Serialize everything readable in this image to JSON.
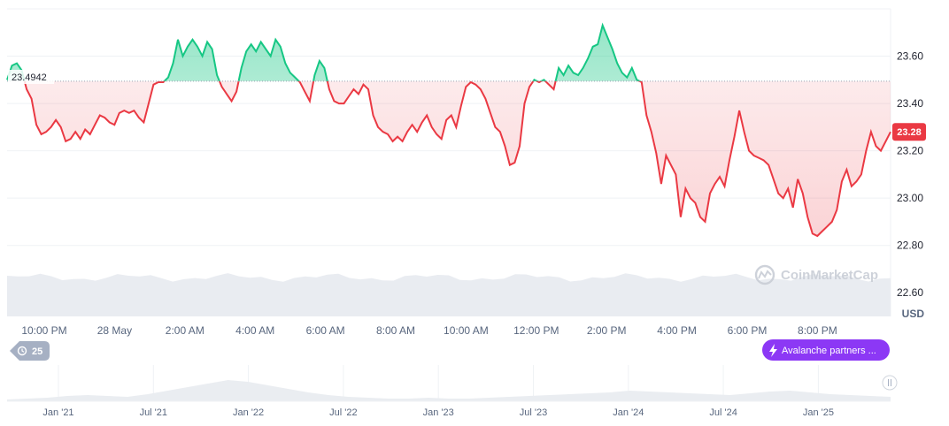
{
  "chart_data": {
    "type": "area",
    "currency": "USD",
    "ylim": [
      22.5,
      23.8
    ],
    "y_ticks": [
      "23.60",
      "23.40",
      "23.20",
      "23.00",
      "22.80",
      "22.60"
    ],
    "x_ticks": [
      "10:00 PM",
      "28 May",
      "2:00 AM",
      "4:00 AM",
      "6:00 AM",
      "8:00 AM",
      "10:00 AM",
      "12:00 PM",
      "2:00 PM",
      "4:00 PM",
      "6:00 PM",
      "8:00 PM"
    ],
    "reference_value": 23.4942,
    "reference_label": "23.4942",
    "current_value": 23.28,
    "current_label": "23.28",
    "grid": true,
    "colors": {
      "up": "#16c784",
      "down": "#ea3943",
      "ref_line": "#9aa1b1",
      "volume": "#e6e9ee"
    },
    "series": [
      {
        "values": [
          23.5,
          23.56,
          23.57,
          23.54,
          23.46,
          23.42,
          23.31,
          23.27,
          23.28,
          23.3,
          23.33,
          23.3,
          23.24,
          23.25,
          23.28,
          23.25,
          23.29,
          23.27,
          23.31,
          23.35,
          23.34,
          23.32,
          23.31,
          23.36,
          23.37,
          23.36,
          23.37,
          23.34,
          23.32,
          23.4,
          23.48,
          23.49,
          23.49,
          23.51,
          23.57,
          23.67,
          23.6,
          23.64,
          23.67,
          23.64,
          23.6,
          23.66,
          23.63,
          23.52,
          23.47,
          23.44,
          23.41,
          23.45,
          23.55,
          23.62,
          23.65,
          23.62,
          23.66,
          23.63,
          23.6,
          23.67,
          23.64,
          23.57,
          23.53,
          23.51,
          23.49,
          23.45,
          23.41,
          23.52,
          23.58,
          23.55,
          23.46,
          23.41,
          23.4,
          23.4,
          23.43,
          23.46,
          23.44,
          23.48,
          23.46,
          23.35,
          23.3,
          23.28,
          23.27,
          23.24,
          23.26,
          23.24,
          23.28,
          23.31,
          23.28,
          23.32,
          23.35,
          23.3,
          23.27,
          23.25,
          23.33,
          23.35,
          23.3,
          23.39,
          23.47,
          23.49,
          23.48,
          23.46,
          23.42,
          23.36,
          23.3,
          23.28,
          23.22,
          23.14,
          23.15,
          23.22,
          23.4,
          23.47,
          23.5,
          23.49,
          23.5,
          23.48,
          23.46,
          23.55,
          23.52,
          23.56,
          23.53,
          23.52,
          23.55,
          23.59,
          23.64,
          23.65,
          23.73,
          23.68,
          23.63,
          23.57,
          23.53,
          23.51,
          23.55,
          23.5,
          23.49,
          23.35,
          23.28,
          23.19,
          23.06,
          23.18,
          23.14,
          23.1,
          22.92,
          23.04,
          23.0,
          22.98,
          22.92,
          22.9,
          23.02,
          23.06,
          23.09,
          23.05,
          23.16,
          23.26,
          23.37,
          23.28,
          23.2,
          23.18,
          23.17,
          23.16,
          23.14,
          23.08,
          23.02,
          23.0,
          23.04,
          22.96,
          23.08,
          23.02,
          22.92,
          22.85,
          22.84,
          22.86,
          22.88,
          22.9,
          22.95,
          23.07,
          23.12,
          23.05,
          23.07,
          23.1,
          23.2,
          23.28,
          23.22,
          23.2,
          23.24,
          23.28
        ]
      }
    ]
  },
  "badges": {
    "range_count": "25",
    "partner_label": "Avalanche partners ..."
  },
  "watermark": {
    "text": "CoinMarketCap"
  },
  "navigator": {
    "ticks": [
      "Jan '21",
      "Jul '21",
      "Jan '22",
      "Jul '22",
      "Jan '23",
      "Jul '23",
      "Jan '24",
      "Jul '24",
      "Jan '25"
    ],
    "handle_icon": "grip-icon"
  }
}
